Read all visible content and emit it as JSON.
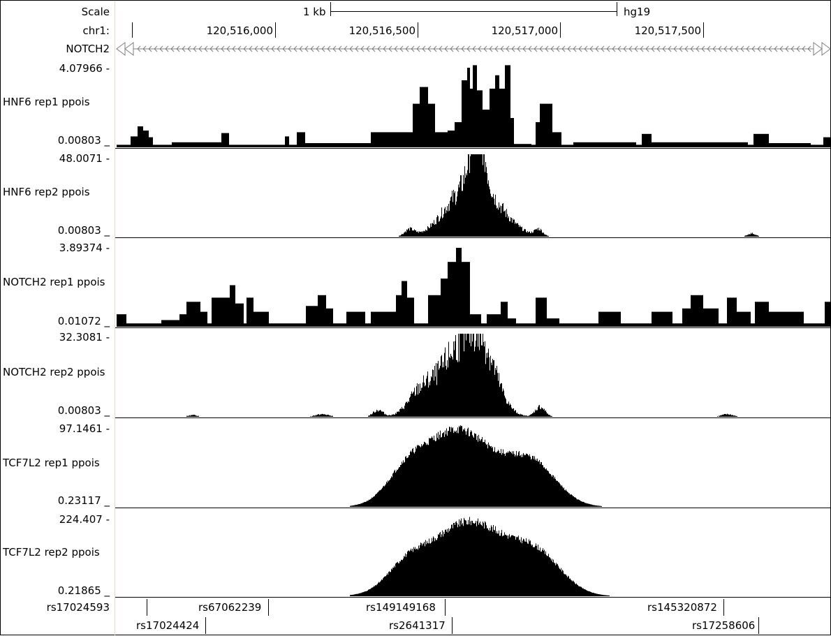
{
  "header": {
    "scale_label": "Scale",
    "scale_bar_text": "1 kb",
    "assembly": "hg19",
    "chrom_label": "chr1:",
    "positions": [
      "120,516,000",
      "120,516,500",
      "120,517,000",
      "120,517,500"
    ],
    "gene_label": "NOTCH2"
  },
  "tracks": [
    {
      "name": "HNF6 rep1 ppois",
      "max": "4.07966 -",
      "min": "0.00803 _"
    },
    {
      "name": "HNF6 rep2 ppois",
      "max": "48.0071 -",
      "min": "0.00803 _"
    },
    {
      "name": "NOTCH2 rep1 ppois",
      "max": "3.89374 -",
      "min": "0.01072 _"
    },
    {
      "name": "NOTCH2 rep2 ppois",
      "max": "32.3081 -",
      "min": "0.00803 _"
    },
    {
      "name": "TCF7L2 rep1 ppois",
      "max": "97.1461 -",
      "min": "0.23117 _"
    },
    {
      "name": "TCF7L2 rep2 ppois",
      "max": "224.407 -",
      "min": "0.21865 _"
    }
  ],
  "snps": {
    "row1_label": "rs17024593",
    "row1": [
      "rs67062239",
      "rs149149168",
      "rs145320872"
    ],
    "row2": [
      "rs17024424",
      "rs2641317",
      "rs17258606"
    ]
  },
  "colors": {
    "signal": "#000000",
    "gene": "#7f7f7f",
    "background": "#ffffff"
  }
}
